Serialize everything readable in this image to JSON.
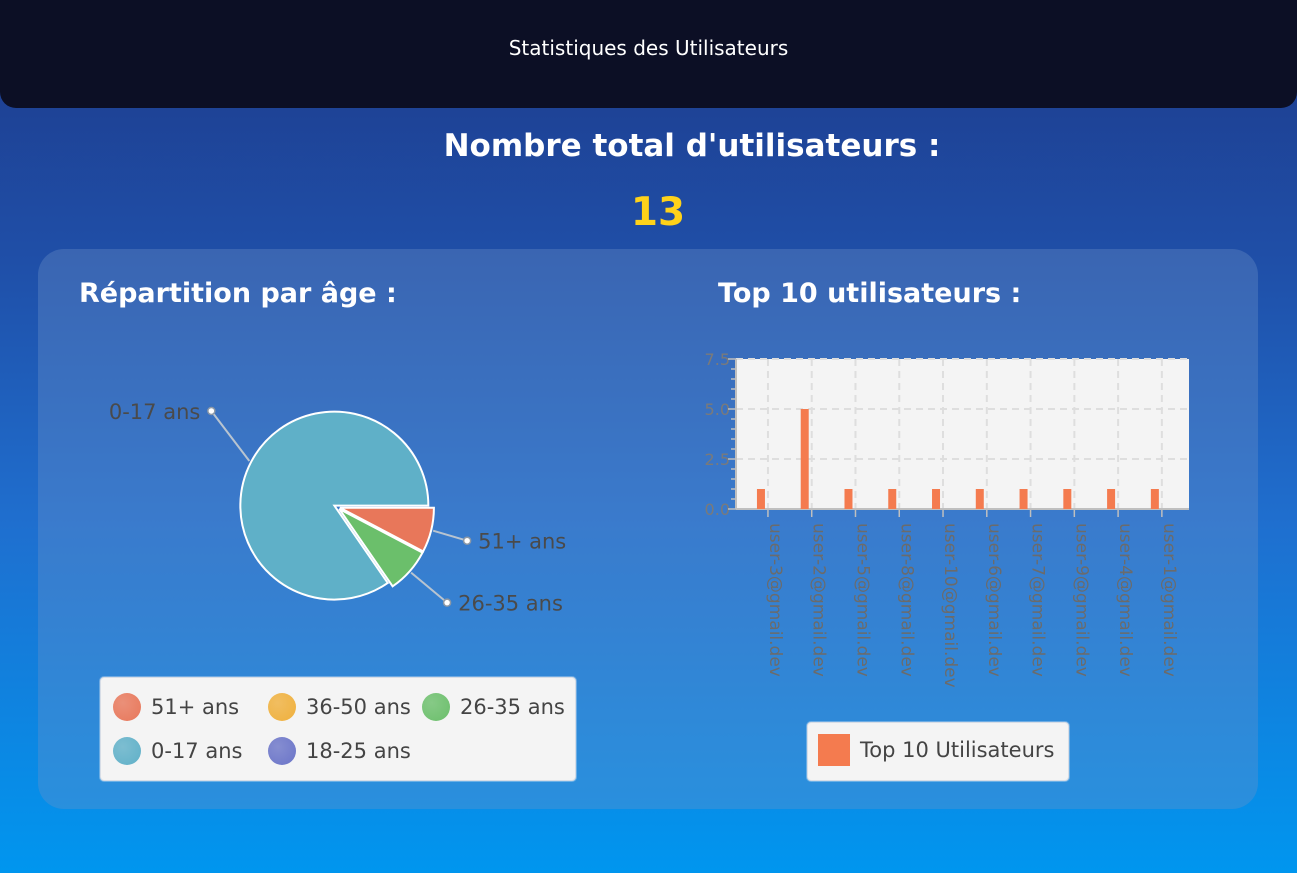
{
  "header": {
    "title": "Statistiques des Utilisateurs"
  },
  "summary": {
    "title": "Nombre total d'utilisateurs :",
    "value": "13"
  },
  "age_section": {
    "title": "Répartition par âge :"
  },
  "top_section": {
    "title": "Top 10 utilisateurs :"
  },
  "colors": {
    "c51": "#e8775a",
    "c36": "#f0b03c",
    "c26": "#6bbf6b",
    "c0": "#5fb0c8",
    "c18": "#6a74c8",
    "bar": "#f47b4f",
    "accent": "#ffd21a"
  },
  "chart_data": [
    {
      "type": "pie",
      "slices": [
        {
          "label": "51+ ans",
          "value": 1,
          "color": "#e8775a"
        },
        {
          "label": "26-35 ans",
          "value": 1,
          "color": "#6bbf6b"
        },
        {
          "label": "0-17 ans",
          "value": 11,
          "color": "#5fb0c8"
        }
      ],
      "legend": [
        {
          "label": "51+ ans",
          "color": "#e8775a"
        },
        {
          "label": "36-50 ans",
          "color": "#f0b03c"
        },
        {
          "label": "26-35 ans",
          "color": "#6bbf6b"
        },
        {
          "label": "0-17 ans",
          "color": "#5fb0c8"
        },
        {
          "label": "18-25 ans",
          "color": "#6a74c8"
        }
      ],
      "legend_position": "bottom"
    },
    {
      "type": "bar",
      "categories": [
        "user-3@gmail.dev",
        "user-2@gmail.dev",
        "user-5@gmail.dev",
        "user-8@gmail.dev",
        "user-10@gmail.dev",
        "user-6@gmail.dev",
        "user-7@gmail.dev",
        "user-9@gmail.dev",
        "user-4@gmail.dev",
        "user-1@gmail.dev"
      ],
      "series": [
        {
          "name": "Top 10 Utilisateurs",
          "values": [
            1,
            5,
            1,
            1,
            1,
            1,
            1,
            1,
            1,
            1
          ],
          "color": "#f47b4f"
        }
      ],
      "ylim": [
        0,
        7.5
      ],
      "yticks": [
        "0.0",
        "2.5",
        "5.0",
        "7.5"
      ],
      "grid": true,
      "legend_position": "bottom"
    }
  ]
}
